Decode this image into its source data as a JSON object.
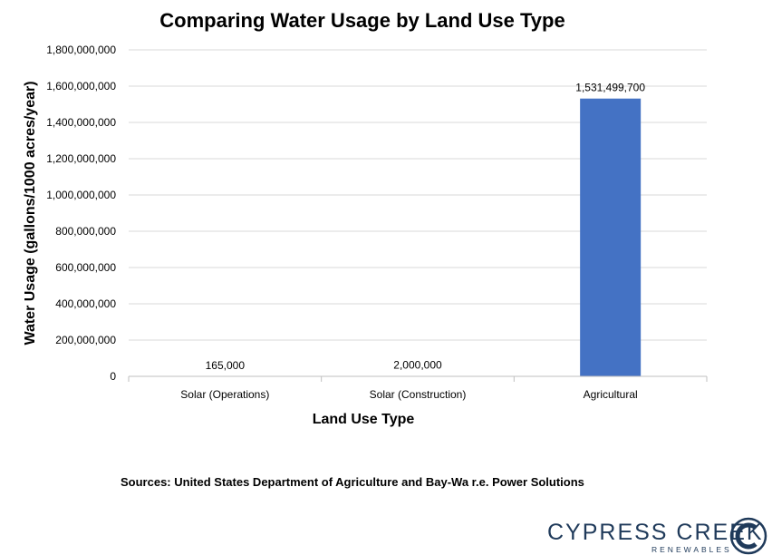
{
  "chart_data": {
    "type": "bar",
    "title": "Comparing Water Usage by Land Use Type",
    "xlabel": "Land Use Type",
    "ylabel": "Water Usage (gallons/1000 acres/year)",
    "categories": [
      "Solar (Operations)",
      "Solar (Construction)",
      "Agricultural"
    ],
    "values": [
      165000,
      2000000,
      1531499700
    ],
    "data_labels": [
      "165,000",
      "2,000,000",
      "1,531,499,700"
    ],
    "ylim": [
      0,
      1800000000
    ],
    "yticks": [
      0,
      200000000,
      400000000,
      600000000,
      800000000,
      1000000000,
      1200000000,
      1400000000,
      1600000000,
      1800000000
    ],
    "ytick_labels": [
      "0",
      "200,000,000",
      "400,000,000",
      "600,000,000",
      "800,000,000",
      "1,000,000,000",
      "1,200,000,000",
      "1,400,000,000",
      "1,600,000,000",
      "1,800,000,000"
    ],
    "grid": true,
    "bar_color": "#4472c4",
    "grid_color": "#d9d9d9"
  },
  "footer": {
    "sources": "Sources:  United States Department of Agriculture and Bay-Wa r.e. Power Solutions"
  },
  "logo": {
    "name": "CYPRESS CREEK",
    "subtitle": "RENEWABLES",
    "color": "#1f3a5a"
  }
}
